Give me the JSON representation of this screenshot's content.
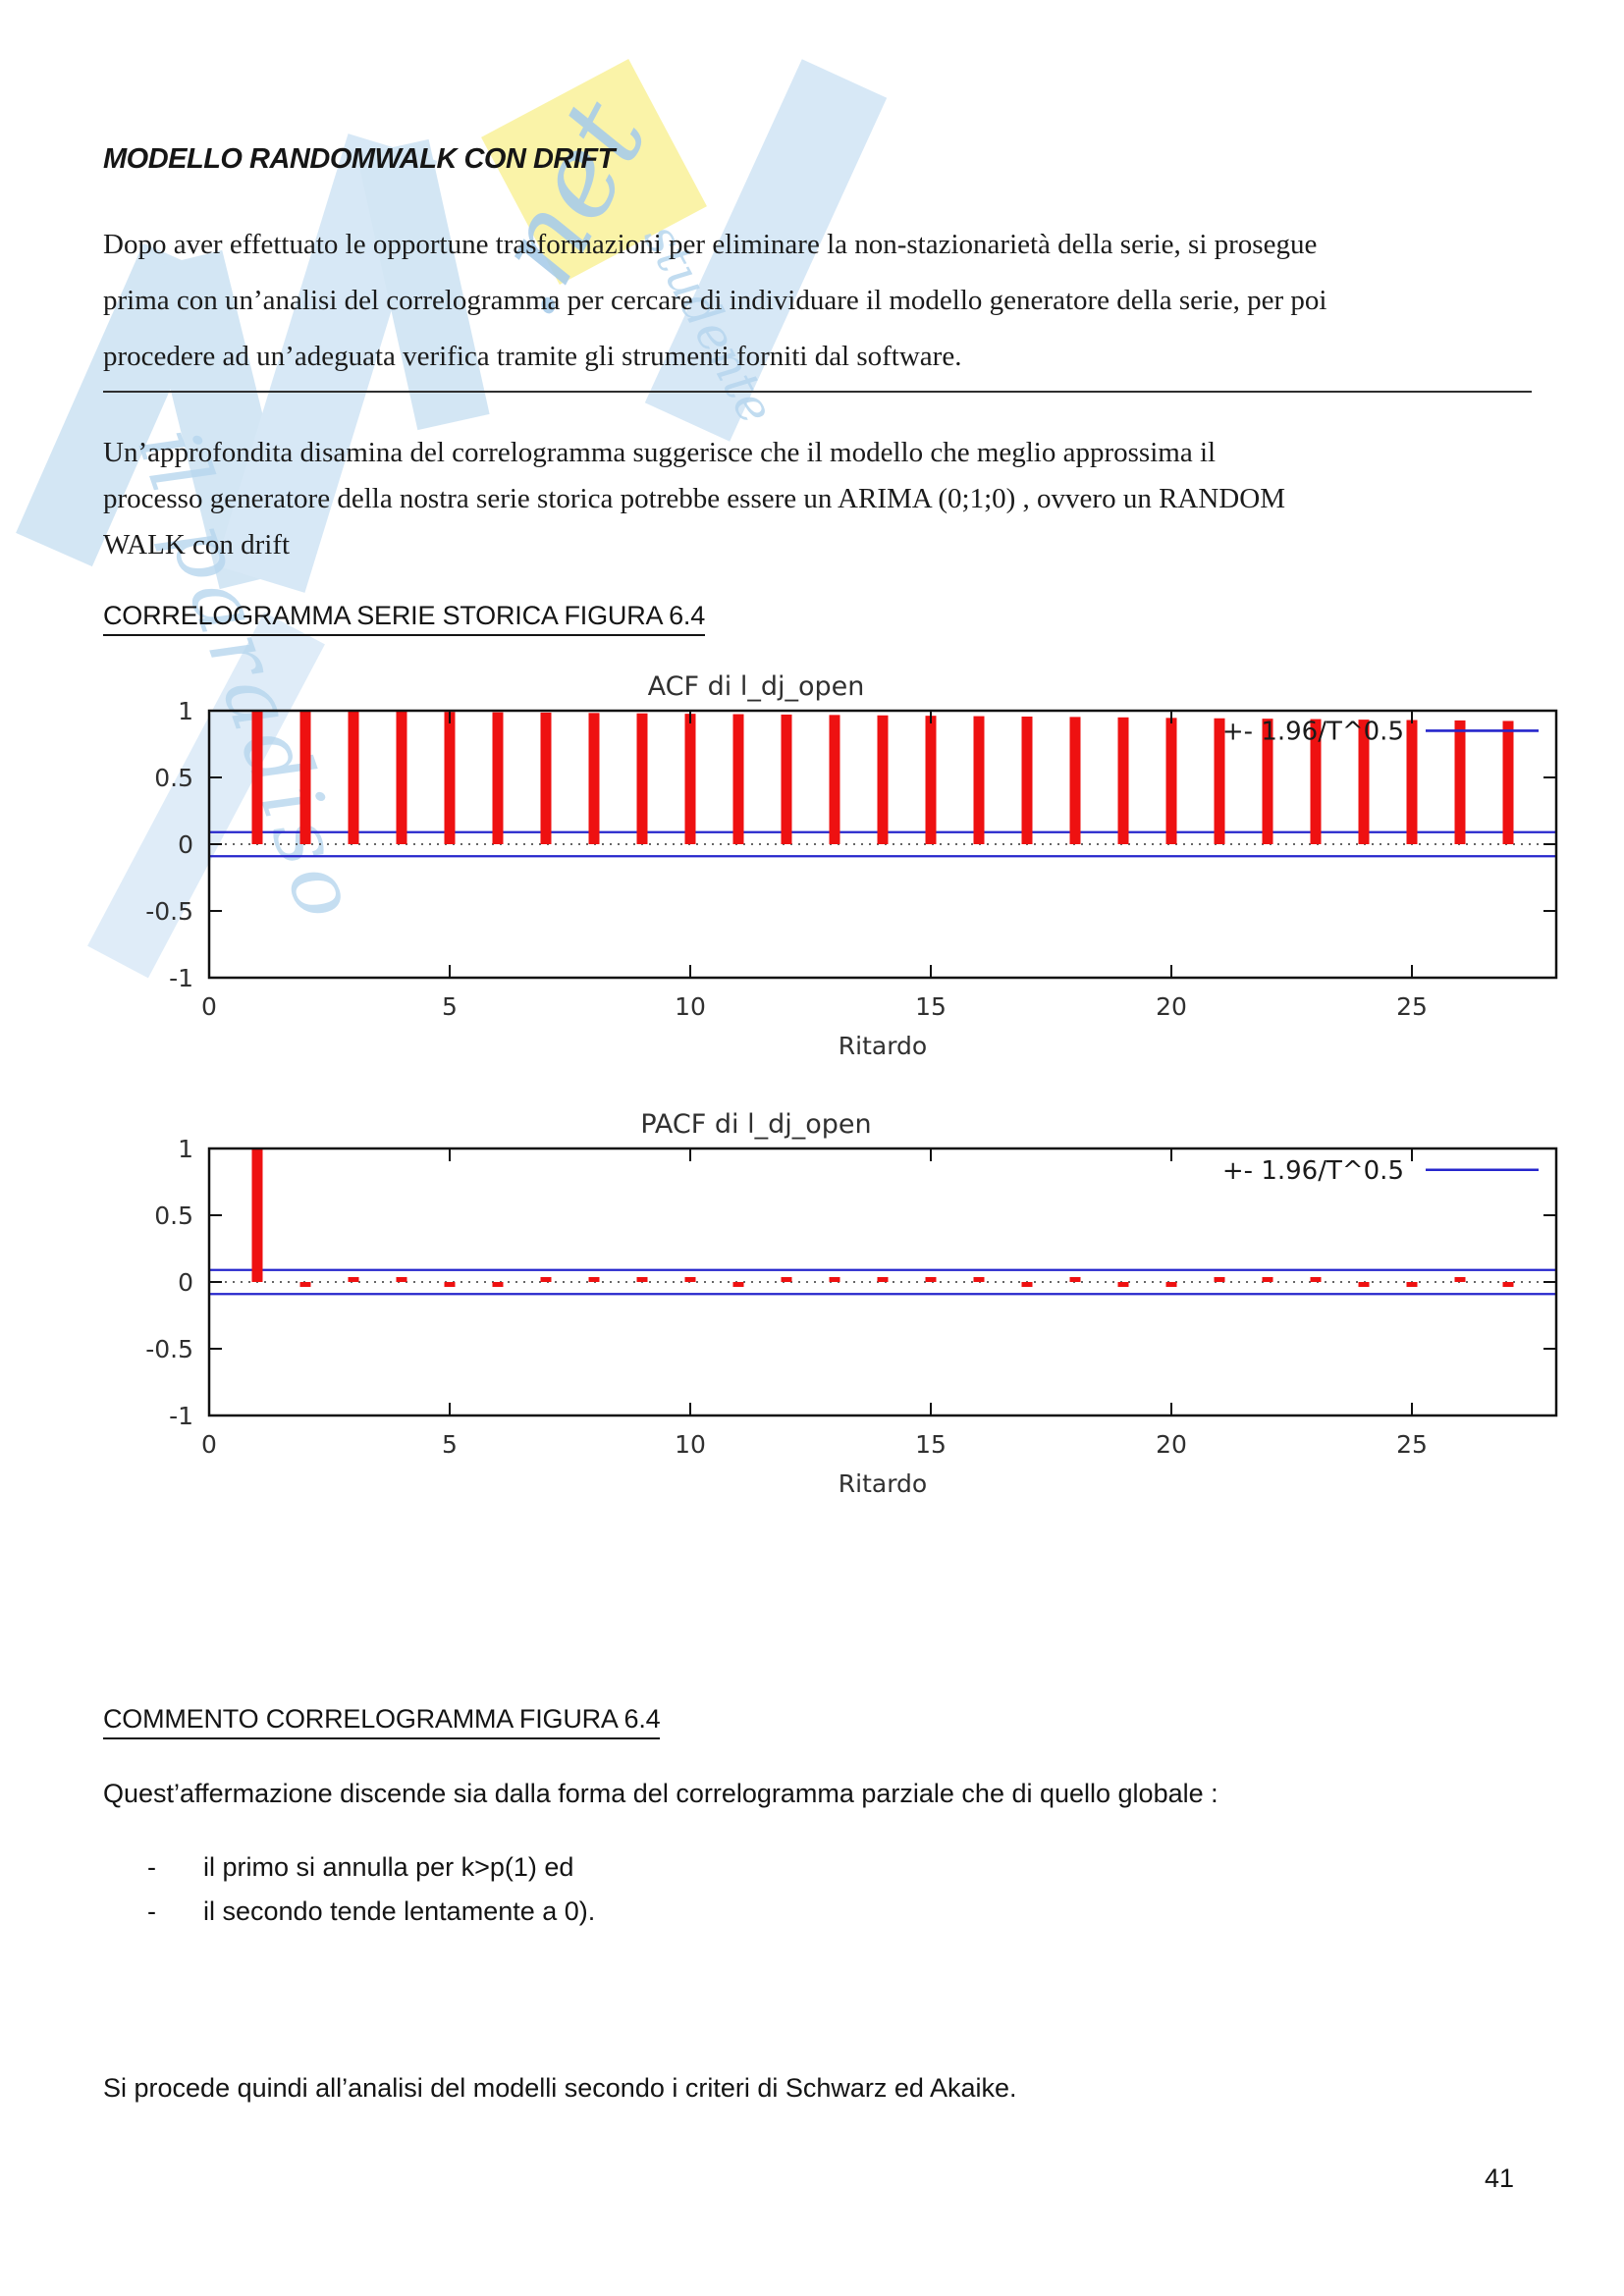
{
  "document": {
    "title": "MODELLO RANDOMWALK CON DRIFT",
    "para1": [
      "Dopo aver effettuato le opportune trasformazioni per eliminare la non-stazionarietà della serie, si prosegue",
      "prima con un’analisi del correlogramma per cercare di individuare il modello generatore della serie, per poi",
      "procedere ad un’adeguata verifica tramite gli strumenti forniti dal software."
    ],
    "para2": [
      "Un’approfondita disamina del correlogramma suggerisce che il modello che meglio approssima il",
      "processo generatore della nostra serie storica potrebbe essere un ARIMA (0;1;0) , ovvero un RANDOM",
      "WALK con drift"
    ],
    "section1_heading": "CORRELOGRAMMA SERIE STORICA FIGURA 6.4",
    "section2_heading": "COMMENTO CORRELOGRAMMA FIGURA 6.4",
    "comment_intro": "Quest’affermazione discende sia dalla forma del correlogramma parziale che di quello globale :",
    "bullets": [
      {
        "marker": "-",
        "text": "il primo si annulla per k>p(1) ed"
      },
      {
        "marker": "-",
        "text": "il secondo tende lentamente a 0)."
      }
    ],
    "closing_line": "Si procede quindi all’analisi del  modelli secondo i criteri di Schwarz ed Akaike.",
    "page_number": "41"
  },
  "watermark": {
    "net_script": ".net",
    "script_left": "il paradiso",
    "script_mid": "studente",
    "yellow_color": "#faf2a3",
    "shape_color": "#c3ddf1",
    "script_color": "#a9cde9"
  },
  "chart_data": [
    {
      "type": "bar",
      "title": "ACF di l_dj_open",
      "xlabel": "Ritardo",
      "legend": "+- 1.96/T^0.5",
      "x": [
        1,
        2,
        3,
        4,
        5,
        6,
        7,
        8,
        9,
        10,
        11,
        12,
        13,
        14,
        15,
        16,
        17,
        18,
        19,
        20,
        21,
        22,
        23,
        24,
        25,
        26,
        27
      ],
      "values": [
        1.0,
        0.998,
        0.996,
        0.993,
        0.991,
        0.988,
        0.986,
        0.983,
        0.98,
        0.977,
        0.974,
        0.971,
        0.968,
        0.965,
        0.962,
        0.959,
        0.956,
        0.953,
        0.95,
        0.946,
        0.943,
        0.94,
        0.937,
        0.933,
        0.93,
        0.927,
        0.923
      ],
      "xlim": [
        0,
        28
      ],
      "ylim": [
        -1,
        1
      ],
      "xticks": [
        0,
        5,
        10,
        15,
        20,
        25
      ],
      "yticks": [
        1,
        0.5,
        0,
        -0.5,
        -1
      ],
      "confidence_band": 0.09,
      "legend_y": 0.85,
      "grid": false,
      "legend_position": "top-right-inside",
      "bar_color": "#ee1111",
      "band_color": "#2626cc"
    },
    {
      "type": "bar",
      "title": "PACF di l_dj_open",
      "xlabel": "Ritardo",
      "legend": "+- 1.96/T^0.5",
      "x": [
        1,
        2,
        3,
        4,
        5,
        6,
        7,
        8,
        9,
        10,
        11,
        12,
        13,
        14,
        15,
        16,
        17,
        18,
        19,
        20,
        21,
        22,
        23,
        24,
        25,
        26,
        27
      ],
      "values": [
        1.0,
        -0.02,
        0.015,
        0.005,
        -0.03,
        -0.028,
        0.012,
        0.012,
        0.004,
        0.01,
        -0.018,
        0.012,
        0.002,
        0.01,
        0.028,
        0.004,
        -0.02,
        0.004,
        -0.012,
        -0.01,
        0.012,
        0.004,
        0.012,
        -0.01,
        -0.018,
        0.002,
        -0.012
      ],
      "xlim": [
        0,
        28
      ],
      "ylim": [
        -1,
        1
      ],
      "xticks": [
        0,
        5,
        10,
        15,
        20,
        25
      ],
      "yticks": [
        1,
        0.5,
        0,
        -0.5,
        -1
      ],
      "confidence_band": 0.09,
      "legend_y": 0.84,
      "grid": false,
      "legend_position": "top-right-inside",
      "bar_color": "#ee1111",
      "band_color": "#2626cc"
    }
  ]
}
